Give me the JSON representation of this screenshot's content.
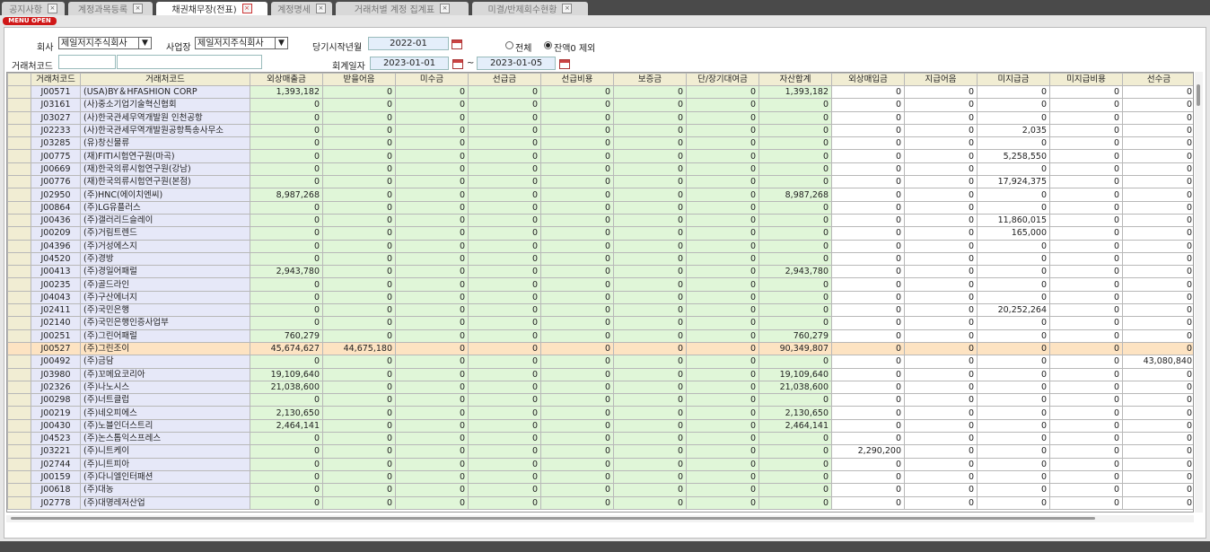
{
  "tabs": [
    "공지사항",
    "계정과목등록",
    "채권채무장(전표)",
    "계정명세",
    "거래처별 계정 집계표",
    "미결/반제회수현황"
  ],
  "menu_button": "MENU OPEN",
  "filters": {
    "company_label": "회사",
    "company_value": "제일저지주식회사",
    "site_label": "사업장",
    "site_value": "제일저지주식회사",
    "start_label": "당기시작년월",
    "start_value": "2022-01",
    "radio_all": "전체",
    "radio_nonzero": "잔액0 제외",
    "partner_label": "거래처코드",
    "date_label": "회계일자",
    "date_from": "2023-01-01",
    "date_sep": "~",
    "date_to": "2023-01-05"
  },
  "table": {
    "columns": [
      "거래처코드",
      "거래처코드",
      "외상매출금",
      "받을어음",
      "미수금",
      "선급금",
      "선급비용",
      "보증금",
      "단/장기대여금",
      "자산합계",
      "외상매입금",
      "지급어음",
      "미지급금",
      "미지급비용",
      "선수금"
    ],
    "rows": [
      [
        "J00571",
        "(USA)BY＆HFASHION CORP",
        "1,393,182",
        "0",
        "0",
        "0",
        "0",
        "0",
        "0",
        "1,393,182",
        "0",
        "0",
        "0",
        "0",
        "0"
      ],
      [
        "J03161",
        "(사)중소기업기술혁신협회",
        "0",
        "0",
        "0",
        "0",
        "0",
        "0",
        "0",
        "0",
        "0",
        "0",
        "0",
        "0",
        "0"
      ],
      [
        "J03027",
        "(사)한국관세무역개발원 인천공항",
        "0",
        "0",
        "0",
        "0",
        "0",
        "0",
        "0",
        "0",
        "0",
        "0",
        "0",
        "0",
        "0"
      ],
      [
        "J02233",
        "(사)한국관세무역개발원공항특송사무소",
        "0",
        "0",
        "0",
        "0",
        "0",
        "0",
        "0",
        "0",
        "0",
        "0",
        "2,035",
        "0",
        "0"
      ],
      [
        "J03285",
        "(유)창신물류",
        "0",
        "0",
        "0",
        "0",
        "0",
        "0",
        "0",
        "0",
        "0",
        "0",
        "0",
        "0",
        "0"
      ],
      [
        "J00775",
        "(재)FITI시험연구원(마곡)",
        "0",
        "0",
        "0",
        "0",
        "0",
        "0",
        "0",
        "0",
        "0",
        "0",
        "5,258,550",
        "0",
        "0"
      ],
      [
        "J00669",
        "(재)한국의류시험연구원(강남)",
        "0",
        "0",
        "0",
        "0",
        "0",
        "0",
        "0",
        "0",
        "0",
        "0",
        "0",
        "0",
        "0"
      ],
      [
        "J00776",
        "(재)한국의류시험연구원(본점)",
        "0",
        "0",
        "0",
        "0",
        "0",
        "0",
        "0",
        "0",
        "0",
        "0",
        "17,924,375",
        "0",
        "0"
      ],
      [
        "J02950",
        "(주)HNC(에이치엔씨)",
        "8,987,268",
        "0",
        "0",
        "0",
        "0",
        "0",
        "0",
        "8,987,268",
        "0",
        "0",
        "0",
        "0",
        "0"
      ],
      [
        "J00864",
        "(주)LG유플러스",
        "0",
        "0",
        "0",
        "0",
        "0",
        "0",
        "0",
        "0",
        "0",
        "0",
        "0",
        "0",
        "0"
      ],
      [
        "J00436",
        "(주)갤러리드슬레이",
        "0",
        "0",
        "0",
        "0",
        "0",
        "0",
        "0",
        "0",
        "0",
        "0",
        "11,860,015",
        "0",
        "0"
      ],
      [
        "J00209",
        "(주)거림트렌드",
        "0",
        "0",
        "0",
        "0",
        "0",
        "0",
        "0",
        "0",
        "0",
        "0",
        "165,000",
        "0",
        "0"
      ],
      [
        "J04396",
        "(주)거성에스지",
        "0",
        "0",
        "0",
        "0",
        "0",
        "0",
        "0",
        "0",
        "0",
        "0",
        "0",
        "0",
        "0"
      ],
      [
        "J04520",
        "(주)경방",
        "0",
        "0",
        "0",
        "0",
        "0",
        "0",
        "0",
        "0",
        "0",
        "0",
        "0",
        "0",
        "0"
      ],
      [
        "J00413",
        "(주)경일어패럴",
        "2,943,780",
        "0",
        "0",
        "0",
        "0",
        "0",
        "0",
        "2,943,780",
        "0",
        "0",
        "0",
        "0",
        "0"
      ],
      [
        "J00235",
        "(주)골드라인",
        "0",
        "0",
        "0",
        "0",
        "0",
        "0",
        "0",
        "0",
        "0",
        "0",
        "0",
        "0",
        "0"
      ],
      [
        "J04043",
        "(주)구산에너지",
        "0",
        "0",
        "0",
        "0",
        "0",
        "0",
        "0",
        "0",
        "0",
        "0",
        "0",
        "0",
        "0"
      ],
      [
        "J02411",
        "(주)국민은행",
        "0",
        "0",
        "0",
        "0",
        "0",
        "0",
        "0",
        "0",
        "0",
        "0",
        "20,252,264",
        "0",
        "0"
      ],
      [
        "J02140",
        "(주)국민은행인증사업부",
        "0",
        "0",
        "0",
        "0",
        "0",
        "0",
        "0",
        "0",
        "0",
        "0",
        "0",
        "0",
        "0"
      ],
      [
        "J00251",
        "(주)그린어패럴",
        "760,279",
        "0",
        "0",
        "0",
        "0",
        "0",
        "0",
        "760,279",
        "0",
        "0",
        "0",
        "0",
        "0"
      ],
      [
        "J00527",
        "(주)그린조이",
        "45,674,627",
        "44,675,180",
        "0",
        "0",
        "0",
        "0",
        "0",
        "90,349,807",
        "0",
        "0",
        "0",
        "0",
        "0"
      ],
      [
        "J00492",
        "(주)금담",
        "0",
        "0",
        "0",
        "0",
        "0",
        "0",
        "0",
        "0",
        "0",
        "0",
        "0",
        "0",
        "43,080,840"
      ],
      [
        "J03980",
        "(주)꼬메요코리아",
        "19,109,640",
        "0",
        "0",
        "0",
        "0",
        "0",
        "0",
        "19,109,640",
        "0",
        "0",
        "0",
        "0",
        "0"
      ],
      [
        "J02326",
        "(주)나노시스",
        "21,038,600",
        "0",
        "0",
        "0",
        "0",
        "0",
        "0",
        "21,038,600",
        "0",
        "0",
        "0",
        "0",
        "0"
      ],
      [
        "J00298",
        "(주)너트클럽",
        "0",
        "0",
        "0",
        "0",
        "0",
        "0",
        "0",
        "0",
        "0",
        "0",
        "0",
        "0",
        "0"
      ],
      [
        "J00219",
        "(주)네오피에스",
        "2,130,650",
        "0",
        "0",
        "0",
        "0",
        "0",
        "0",
        "2,130,650",
        "0",
        "0",
        "0",
        "0",
        "0"
      ],
      [
        "J00430",
        "(주)노블인더스트리",
        "2,464,141",
        "0",
        "0",
        "0",
        "0",
        "0",
        "0",
        "2,464,141",
        "0",
        "0",
        "0",
        "0",
        "0"
      ],
      [
        "J04523",
        "(주)논스톱익스프레스",
        "0",
        "0",
        "0",
        "0",
        "0",
        "0",
        "0",
        "0",
        "0",
        "0",
        "0",
        "0",
        "0"
      ],
      [
        "J03221",
        "(주)니트케이",
        "0",
        "0",
        "0",
        "0",
        "0",
        "0",
        "0",
        "0",
        "2,290,200",
        "0",
        "0",
        "0",
        "0"
      ],
      [
        "J02744",
        "(주)니트피아",
        "0",
        "0",
        "0",
        "0",
        "0",
        "0",
        "0",
        "0",
        "0",
        "0",
        "0",
        "0",
        "0"
      ],
      [
        "J00159",
        "(주)다니엘인터패션",
        "0",
        "0",
        "0",
        "0",
        "0",
        "0",
        "0",
        "0",
        "0",
        "0",
        "0",
        "0",
        "0"
      ],
      [
        "J00618",
        "(주)대농",
        "0",
        "0",
        "0",
        "0",
        "0",
        "0",
        "0",
        "0",
        "0",
        "0",
        "0",
        "0",
        "0"
      ],
      [
        "J02778",
        "(주)대명레저산업",
        "0",
        "0",
        "0",
        "0",
        "0",
        "0",
        "0",
        "0",
        "0",
        "0",
        "0",
        "0",
        "0"
      ]
    ]
  }
}
